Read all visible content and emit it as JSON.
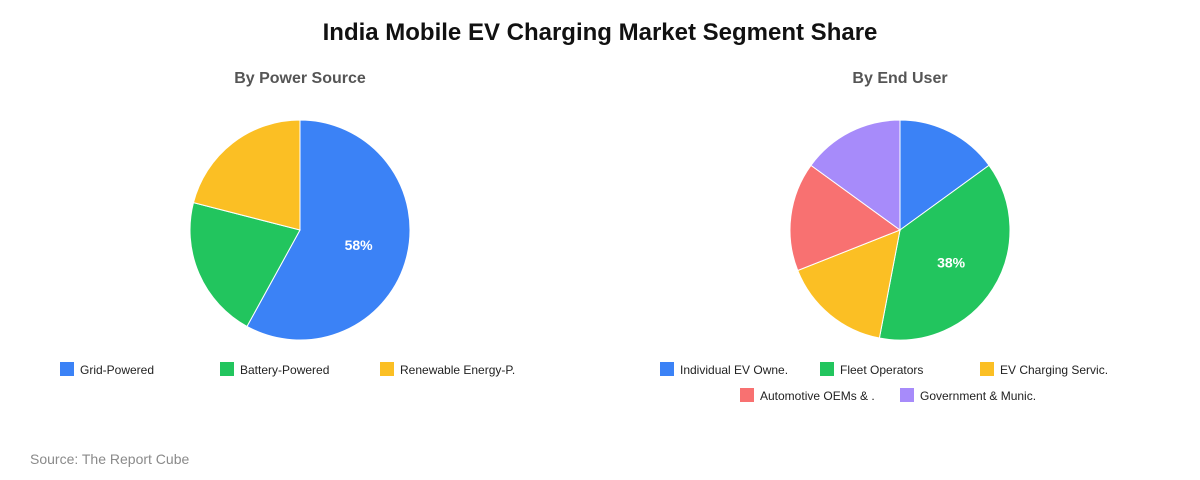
{
  "title": "India Mobile EV Charging Market Segment Share",
  "source": "Source: The Report Cube",
  "chart_data": [
    {
      "type": "pie",
      "title": "By Power Source",
      "categories": [
        "Grid-Powered",
        "Battery-Powered",
        "Renewable Energy-P."
      ],
      "values": [
        58,
        21,
        21
      ],
      "colors": [
        "#3b82f6",
        "#22c55e",
        "#fbbf24"
      ],
      "data_labels": [
        "58%",
        "",
        ""
      ],
      "legend_position": "bottom"
    },
    {
      "type": "pie",
      "title": "By End User",
      "categories": [
        "Individual EV Owne.",
        "Fleet Operators",
        "EV Charging Servic.",
        "Automotive OEMs & .",
        "Government & Munic."
      ],
      "values": [
        15,
        38,
        16,
        16,
        15
      ],
      "colors": [
        "#3b82f6",
        "#22c55e",
        "#fbbf24",
        "#f87171",
        "#a78bfa"
      ],
      "data_labels": [
        "",
        "38%",
        "",
        "",
        ""
      ],
      "legend_position": "bottom"
    }
  ]
}
